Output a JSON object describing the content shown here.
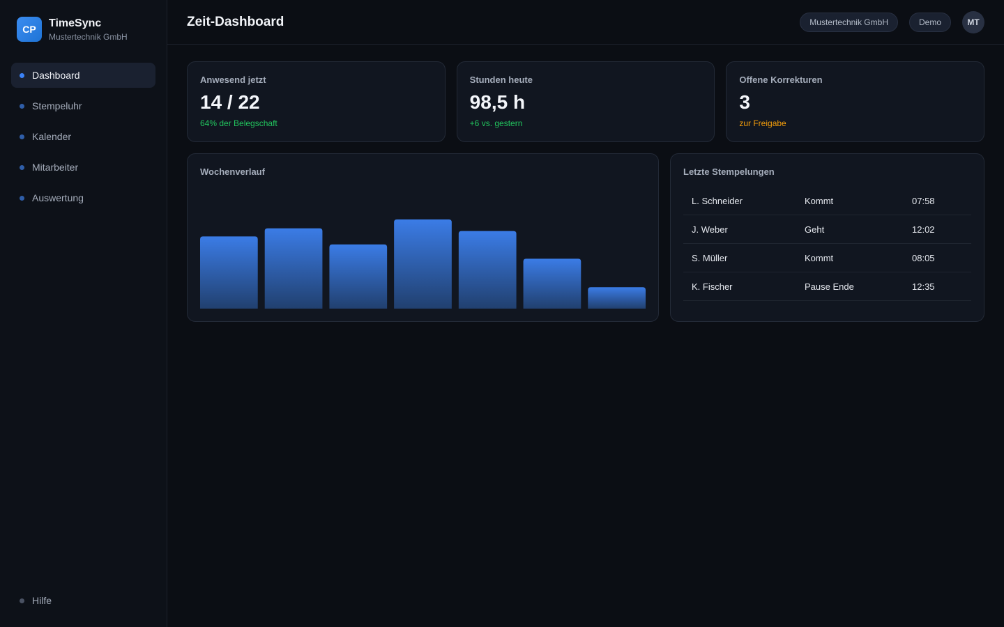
{
  "brand": {
    "logo": "CP",
    "name": "TimeSync",
    "company": "Mustertechnik GmbH"
  },
  "nav": {
    "items": [
      {
        "label": "Dashboard",
        "active": true
      },
      {
        "label": "Stempeluhr"
      },
      {
        "label": "Kalender"
      },
      {
        "label": "Mitarbeiter"
      },
      {
        "label": "Auswertung"
      }
    ],
    "help": "Hilfe"
  },
  "header": {
    "title": "Zeit-Dashboard",
    "company_pill": "Mustertechnik GmbH",
    "demo_pill": "Demo",
    "avatar": "MT"
  },
  "kpis": [
    {
      "label": "Anwesend jetzt",
      "value": "14 / 22",
      "sub": "64% der Belegschaft",
      "sub_color": "#22c55e"
    },
    {
      "label": "Stunden heute",
      "value": "98,5 h",
      "sub": "+6 vs. gestern",
      "sub_color": "#22c55e"
    },
    {
      "label": "Offene Korrekturen",
      "value": "3",
      "sub": "zur Freigabe",
      "sub_color": "#f59e0b"
    }
  ],
  "chart": {
    "title": "Wochenverlauf"
  },
  "chart_data": {
    "type": "bar",
    "title": "Wochenverlauf",
    "categories": [
      "",
      "",
      "",
      "",
      "",
      "",
      ""
    ],
    "values": [
      81,
      90,
      72,
      100,
      87,
      56,
      24
    ],
    "ylim": [
      0,
      100
    ],
    "grid": false,
    "colors": {
      "top": "#3b7ce6",
      "bottom": "#21406f"
    }
  },
  "recent": {
    "title": "Letzte Stempelungen",
    "rows": [
      {
        "name": "L. Schneider",
        "action": "Kommt",
        "time": "07:58"
      },
      {
        "name": "J. Weber",
        "action": "Geht",
        "time": "12:02"
      },
      {
        "name": "S. Müller",
        "action": "Kommt",
        "time": "08:05"
      },
      {
        "name": "K. Fischer",
        "action": "Pause Ende",
        "time": "12:35"
      }
    ]
  }
}
